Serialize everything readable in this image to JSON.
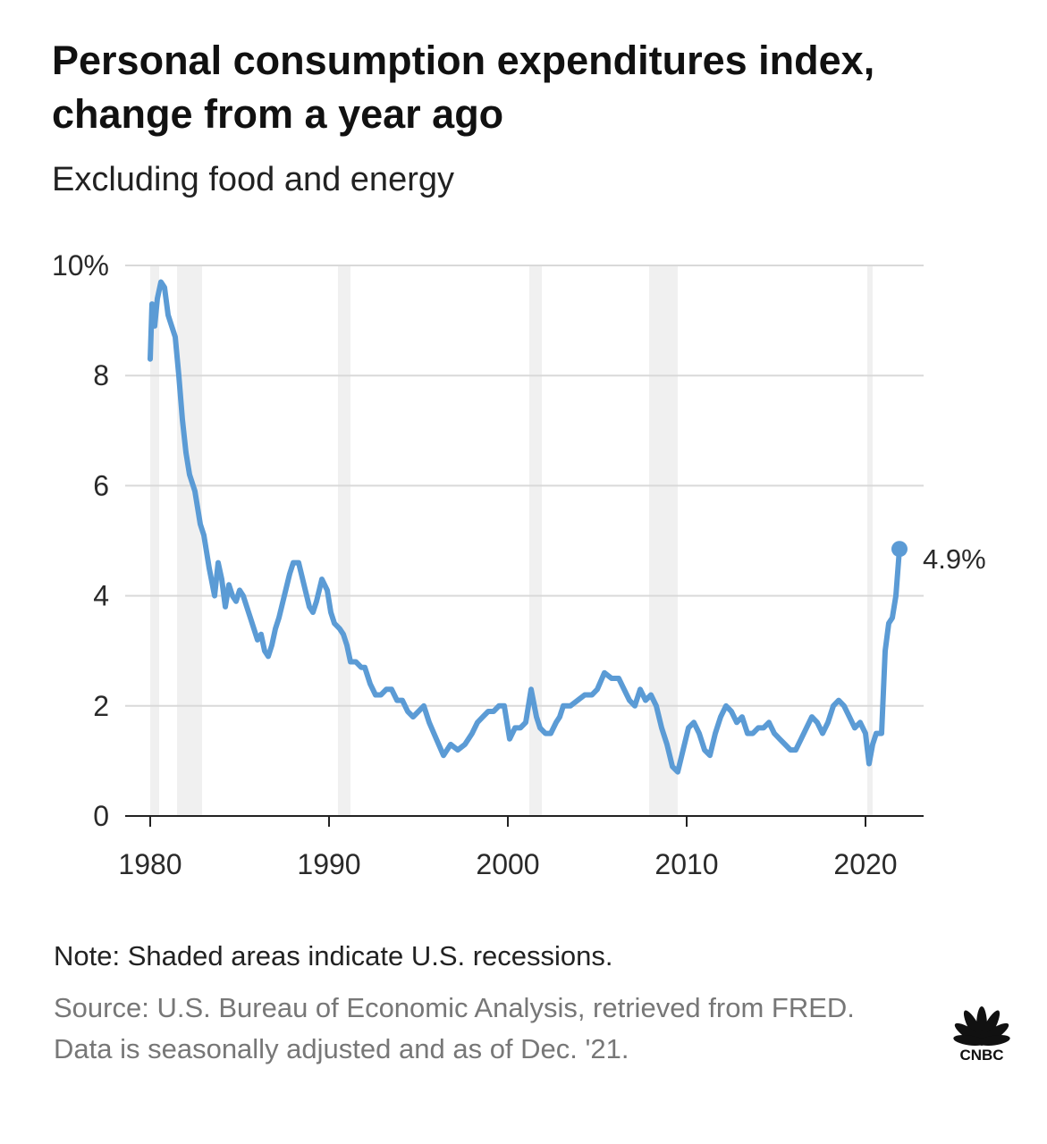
{
  "title": "Personal consumption expenditures index, change from a year ago",
  "subtitle": "Excluding food and energy",
  "note": "Note: Shaded areas indicate U.S. recessions.",
  "source": "Source: U.S. Bureau of Economic Analysis, retrieved from FRED. Data is seasonally adjusted and as of Dec. '21.",
  "logo_text": "CNBC",
  "colors": {
    "line": "#5b9bd5",
    "grid": "#d9d9d9",
    "recession": "#f0f0f0",
    "axis": "#222222"
  },
  "chart_data": {
    "type": "line",
    "title": "Personal consumption expenditures index, change from a year ago",
    "subtitle": "Excluding food and energy",
    "xlim": [
      1980,
      2022
    ],
    "ylim": [
      0,
      10
    ],
    "x_ticks": [
      1980,
      1990,
      2000,
      2010,
      2020
    ],
    "x_tick_labels": [
      "1980",
      "1990",
      "2000",
      "2010",
      "2020"
    ],
    "y_ticks": [
      0,
      2,
      4,
      6,
      8,
      10
    ],
    "y_tick_labels": [
      "0",
      "2",
      "4",
      "6",
      "8",
      "10%"
    ],
    "grid": true,
    "recessions": [
      [
        1980.0,
        1980.5
      ],
      [
        1981.5,
        1982.9
      ],
      [
        1990.5,
        1991.2
      ],
      [
        2001.2,
        2001.9
      ],
      [
        2007.9,
        2009.5
      ],
      [
        2020.1,
        2020.4
      ]
    ],
    "end_label": "4.9%",
    "x": [
      1980.0,
      1980.1,
      1980.25,
      1980.4,
      1980.6,
      1980.8,
      1981.0,
      1981.2,
      1981.4,
      1981.6,
      1981.8,
      1982.0,
      1982.2,
      1982.5,
      1982.8,
      1983.0,
      1983.3,
      1983.6,
      1983.8,
      1984.0,
      1984.2,
      1984.4,
      1984.6,
      1984.8,
      1985.0,
      1985.2,
      1985.4,
      1985.6,
      1985.8,
      1986.0,
      1986.2,
      1986.4,
      1986.6,
      1986.8,
      1987.0,
      1987.2,
      1987.5,
      1987.8,
      1988.0,
      1988.3,
      1988.6,
      1988.9,
      1989.1,
      1989.3,
      1989.6,
      1989.9,
      1990.1,
      1990.3,
      1990.6,
      1990.8,
      1991.0,
      1991.2,
      1991.5,
      1991.8,
      1992.0,
      1992.3,
      1992.6,
      1992.9,
      1993.2,
      1993.5,
      1993.8,
      1994.1,
      1994.4,
      1994.7,
      1995.0,
      1995.3,
      1995.6,
      1996.0,
      1996.4,
      1996.8,
      1997.2,
      1997.6,
      1998.0,
      1998.3,
      1998.6,
      1998.9,
      1999.2,
      1999.5,
      1999.8,
      2000.1,
      2000.4,
      2000.7,
      2001.0,
      2001.3,
      2001.6,
      2001.8,
      2002.1,
      2002.4,
      2002.7,
      2002.9,
      2003.1,
      2003.5,
      2003.9,
      2004.3,
      2004.7,
      2005.0,
      2005.4,
      2005.8,
      2006.2,
      2006.5,
      2006.8,
      2007.1,
      2007.4,
      2007.7,
      2008.0,
      2008.3,
      2008.6,
      2008.9,
      2009.2,
      2009.5,
      2009.8,
      2010.1,
      2010.4,
      2010.7,
      2011.0,
      2011.3,
      2011.6,
      2011.9,
      2012.2,
      2012.5,
      2012.8,
      2013.1,
      2013.4,
      2013.7,
      2014.0,
      2014.3,
      2014.6,
      2014.9,
      2015.2,
      2015.5,
      2015.8,
      2016.1,
      2016.4,
      2016.7,
      2017.0,
      2017.3,
      2017.6,
      2017.9,
      2018.2,
      2018.5,
      2018.8,
      2019.1,
      2019.4,
      2019.7,
      2020.0,
      2020.2,
      2020.4,
      2020.6,
      2020.9,
      2021.1,
      2021.3,
      2021.5,
      2021.7,
      2021.9
    ],
    "y": [
      8.3,
      9.3,
      8.9,
      9.4,
      9.7,
      9.6,
      9.1,
      8.9,
      8.7,
      8.0,
      7.2,
      6.6,
      6.2,
      5.9,
      5.3,
      5.1,
      4.5,
      4.0,
      4.6,
      4.3,
      3.8,
      4.2,
      4.0,
      3.9,
      4.1,
      4.0,
      3.8,
      3.6,
      3.4,
      3.2,
      3.3,
      3.0,
      2.9,
      3.1,
      3.4,
      3.6,
      4.0,
      4.4,
      4.6,
      4.6,
      4.2,
      3.8,
      3.7,
      3.9,
      4.3,
      4.1,
      3.7,
      3.5,
      3.4,
      3.3,
      3.1,
      2.8,
      2.8,
      2.7,
      2.7,
      2.4,
      2.2,
      2.2,
      2.3,
      2.3,
      2.1,
      2.1,
      1.9,
      1.8,
      1.9,
      2.0,
      1.7,
      1.4,
      1.1,
      1.3,
      1.2,
      1.3,
      1.5,
      1.7,
      1.8,
      1.9,
      1.9,
      2.0,
      2.0,
      1.4,
      1.6,
      1.6,
      1.7,
      2.3,
      1.8,
      1.6,
      1.5,
      1.5,
      1.7,
      1.8,
      2.0,
      2.0,
      2.1,
      2.2,
      2.2,
      2.3,
      2.6,
      2.5,
      2.5,
      2.3,
      2.1,
      2.0,
      2.3,
      2.1,
      2.2,
      2.0,
      1.6,
      1.3,
      0.9,
      0.8,
      1.2,
      1.6,
      1.7,
      1.5,
      1.2,
      1.1,
      1.5,
      1.8,
      2.0,
      1.9,
      1.7,
      1.8,
      1.5,
      1.5,
      1.6,
      1.6,
      1.7,
      1.5,
      1.4,
      1.3,
      1.2,
      1.2,
      1.4,
      1.6,
      1.8,
      1.7,
      1.5,
      1.7,
      2.0,
      2.1,
      2.0,
      1.8,
      1.6,
      1.7,
      1.5,
      0.95,
      1.3,
      1.5,
      1.5,
      3.0,
      3.5,
      3.6,
      4.0,
      4.85
    ]
  }
}
